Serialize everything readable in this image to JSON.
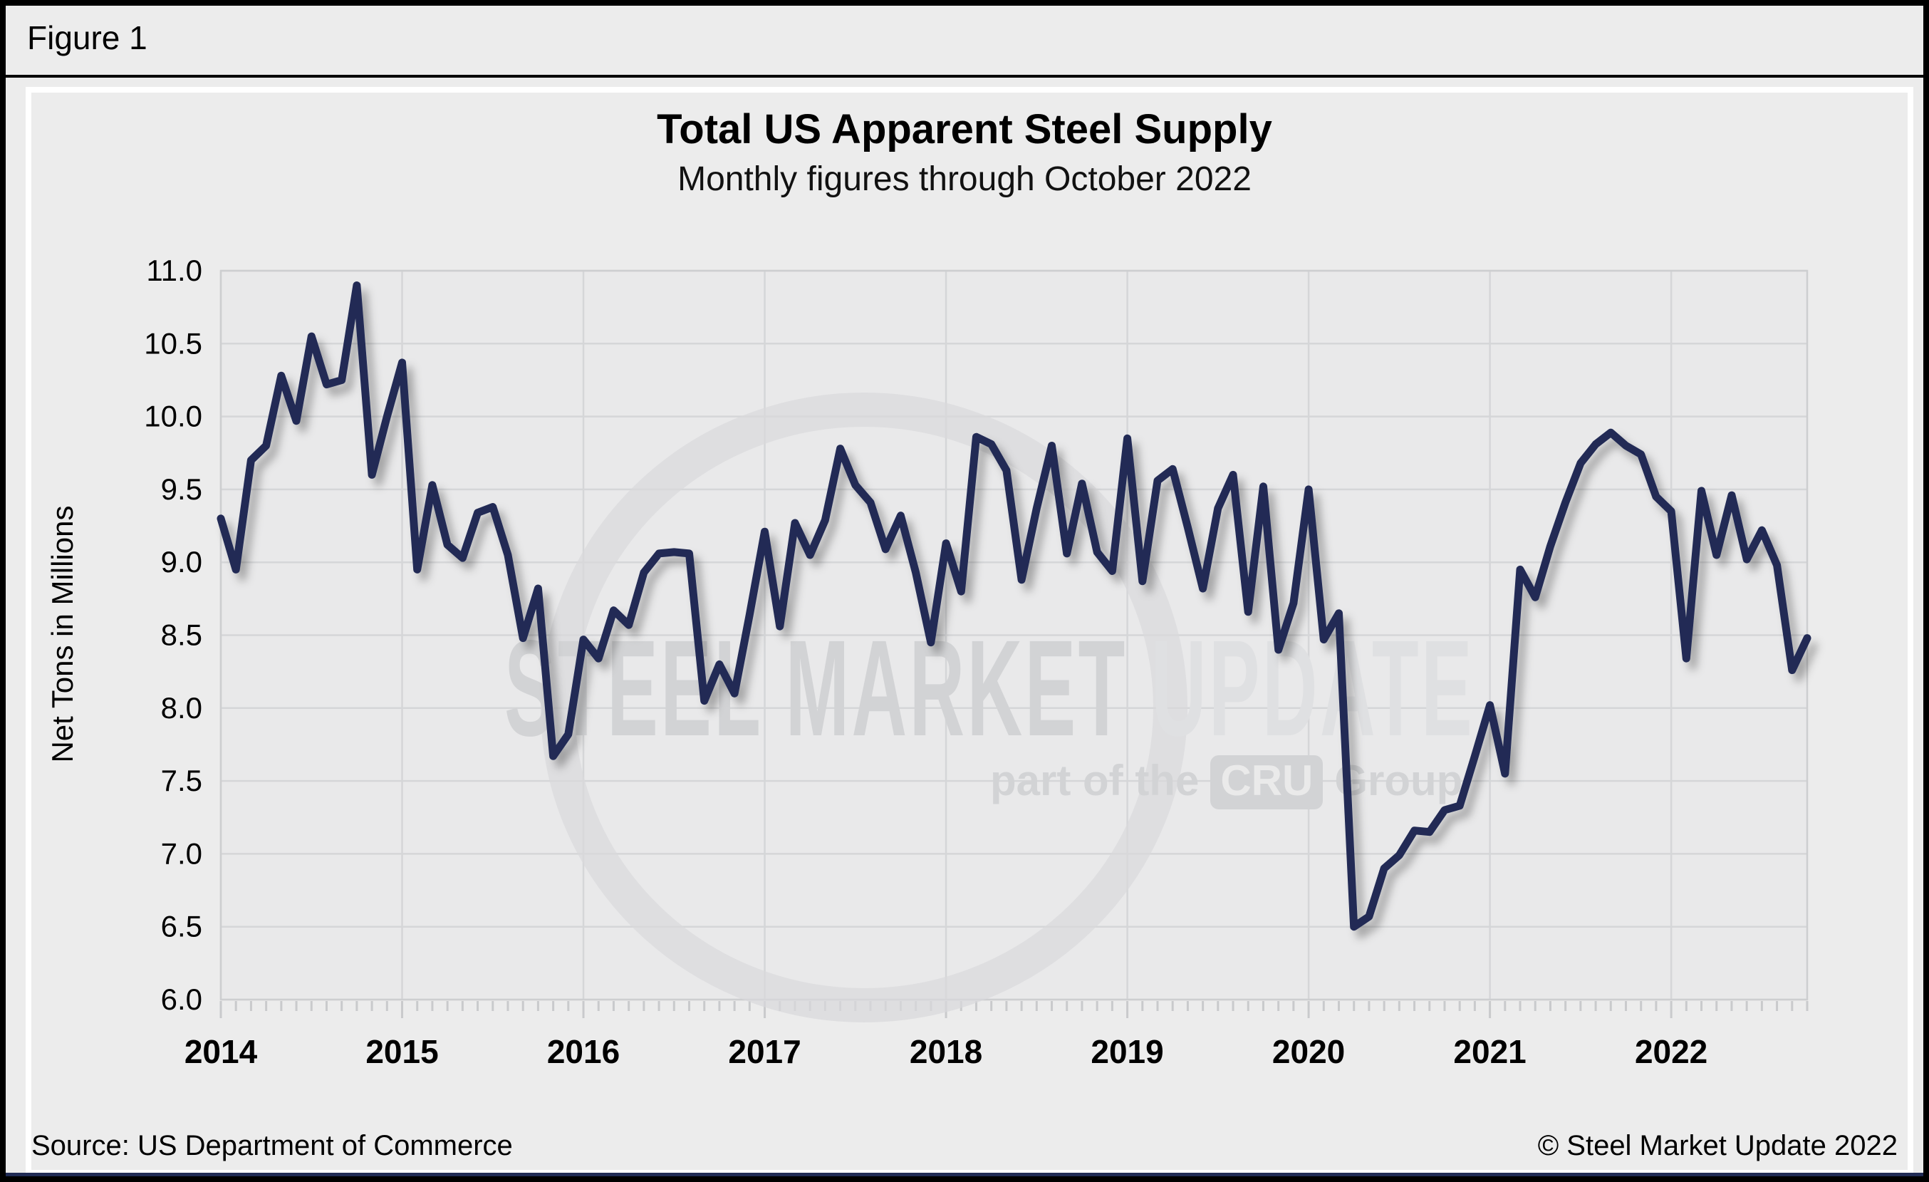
{
  "figure_label": "Figure 1",
  "chart": {
    "title": "Total US Apparent Steel Supply",
    "subtitle": "Monthly figures through October 2022",
    "y_axis_label": "Net Tons in Millions"
  },
  "watermark": {
    "main_dark": "STEEL MARKET ",
    "main_light": "UPDATE",
    "sub_prefix": "part of the",
    "cru": "CRU",
    "sub_suffix": "Group"
  },
  "footer": {
    "source": "Source: US Department of Commerce",
    "copyright": "© Steel Market Update 2022"
  },
  "colors": {
    "line": "#202b55",
    "grid": "#d5d6d8",
    "axis_border": "#cdced0",
    "tick": "#c9cacc",
    "plot_bg": "#e9e9ea",
    "page_bg": "#ececec",
    "watermark_swoosh": "#d8d9db",
    "accent_bar": "#202b55",
    "label_text": "#000000"
  },
  "chart_data": {
    "type": "line",
    "title": "Total US Apparent Steel Supply",
    "subtitle": "Monthly figures through October 2022",
    "xlabel": "",
    "ylabel": "Net Tons in Millions",
    "ylim": [
      6.0,
      11.0
    ],
    "ytick_step": 0.5,
    "ytick_labels": [
      "6.0",
      "6.5",
      "7.0",
      "7.5",
      "8.0",
      "8.5",
      "9.0",
      "9.5",
      "10.0",
      "10.5",
      "11.0"
    ],
    "x_tick_labels": [
      "2014",
      "2015",
      "2016",
      "2017",
      "2018",
      "2019",
      "2020",
      "2021",
      "2022"
    ],
    "x_unit": "month",
    "grid": true,
    "legend": false,
    "series": [
      {
        "name": "Total US Apparent Steel Supply (net tons, millions)",
        "start_month": "2014-01",
        "end_month": "2022-10",
        "values": [
          9.3,
          8.95,
          9.7,
          9.8,
          10.28,
          9.97,
          10.55,
          10.22,
          10.25,
          10.9,
          9.6,
          10.0,
          10.37,
          8.95,
          9.53,
          9.12,
          9.03,
          9.34,
          9.38,
          9.05,
          8.48,
          8.82,
          7.67,
          7.82,
          8.47,
          8.34,
          8.67,
          8.57,
          8.93,
          9.06,
          9.07,
          9.06,
          8.05,
          8.3,
          8.1,
          8.64,
          9.21,
          8.56,
          9.27,
          9.05,
          9.29,
          9.78,
          9.53,
          9.41,
          9.09,
          9.32,
          8.93,
          8.45,
          9.13,
          8.8,
          9.86,
          9.81,
          9.63,
          8.88,
          9.37,
          9.8,
          9.06,
          9.54,
          9.07,
          8.94,
          9.85,
          8.87,
          9.56,
          9.64,
          9.24,
          8.82,
          9.37,
          9.6,
          8.66,
          9.52,
          8.4,
          8.72,
          9.5,
          8.47,
          8.65,
          6.5,
          6.57,
          6.9,
          6.99,
          7.16,
          7.15,
          7.3,
          7.33,
          7.67,
          8.02,
          7.55,
          8.95,
          8.76,
          9.11,
          9.41,
          9.68,
          9.81,
          9.89,
          9.8,
          9.74,
          9.45,
          9.35,
          8.34,
          9.49,
          9.05,
          9.46,
          9.02,
          9.22,
          8.98,
          8.26,
          8.48
        ]
      }
    ]
  }
}
